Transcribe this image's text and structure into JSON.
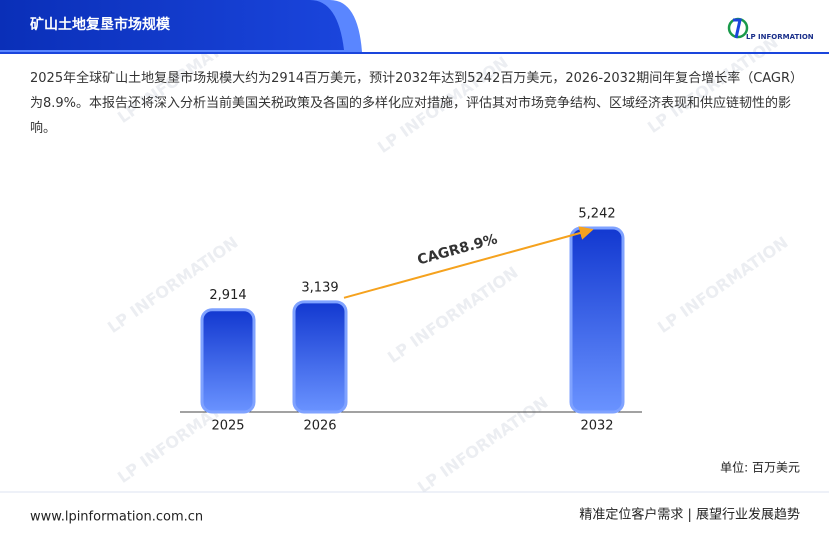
{
  "header": {
    "title": "矿山土地复垦市场规模",
    "logo": "LP INFORMATION"
  },
  "description": "2025年全球矿山土地复垦市场规模大约为2914百万美元，预计2032年达到5242百万美元，2026-2032期间年复合增长率（CAGR）为8.9%。本报告还将深入分析当前美国关税政策及各国的多样化应对措施，评估其对市场竞争结构、区域经济表现和供应链韧性的影响。",
  "chart_data": {
    "type": "bar",
    "categories": [
      "2025",
      "2026",
      "2032"
    ],
    "values": [
      2914,
      3139,
      5242
    ],
    "value_labels": [
      "2,914",
      "3,139",
      "5,242"
    ],
    "annotation": "CAGR8.9%",
    "unit": "单位: 百万美元",
    "color": "#1f45e0"
  },
  "footer": {
    "website": "www.lpinformation.com.cn",
    "slogan": "精准定位客户需求 | 展望行业发展趋势"
  }
}
